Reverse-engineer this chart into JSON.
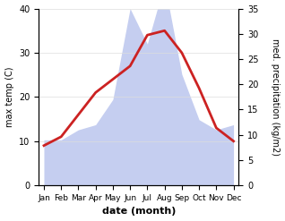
{
  "months": [
    "Jan",
    "Feb",
    "Mar",
    "Apr",
    "May",
    "Jun",
    "Jul",
    "Aug",
    "Sep",
    "Oct",
    "Nov",
    "Dec"
  ],
  "month_indices": [
    0,
    1,
    2,
    3,
    4,
    5,
    6,
    7,
    8,
    9,
    10,
    11
  ],
  "temperature": [
    9,
    11,
    16,
    21,
    24,
    27,
    34,
    35,
    30,
    22,
    13,
    10
  ],
  "precipitation": [
    9,
    9,
    11,
    12,
    17,
    35,
    28,
    40,
    22,
    13,
    11,
    12
  ],
  "temp_color": "#cc2222",
  "precip_fill_color": "#c5cef0",
  "background_color": "#ffffff",
  "temp_ylim": [
    0,
    40
  ],
  "precip_ylim": [
    0,
    35
  ],
  "temp_yticks": [
    0,
    10,
    20,
    30,
    40
  ],
  "precip_yticks": [
    0,
    5,
    10,
    15,
    20,
    25,
    30,
    35
  ],
  "ylabel_left": "max temp (C)",
  "ylabel_right": "med. precipitation (kg/m2)",
  "xlabel": "date (month)",
  "linewidth": 2.0,
  "grid_color": "#dddddd"
}
